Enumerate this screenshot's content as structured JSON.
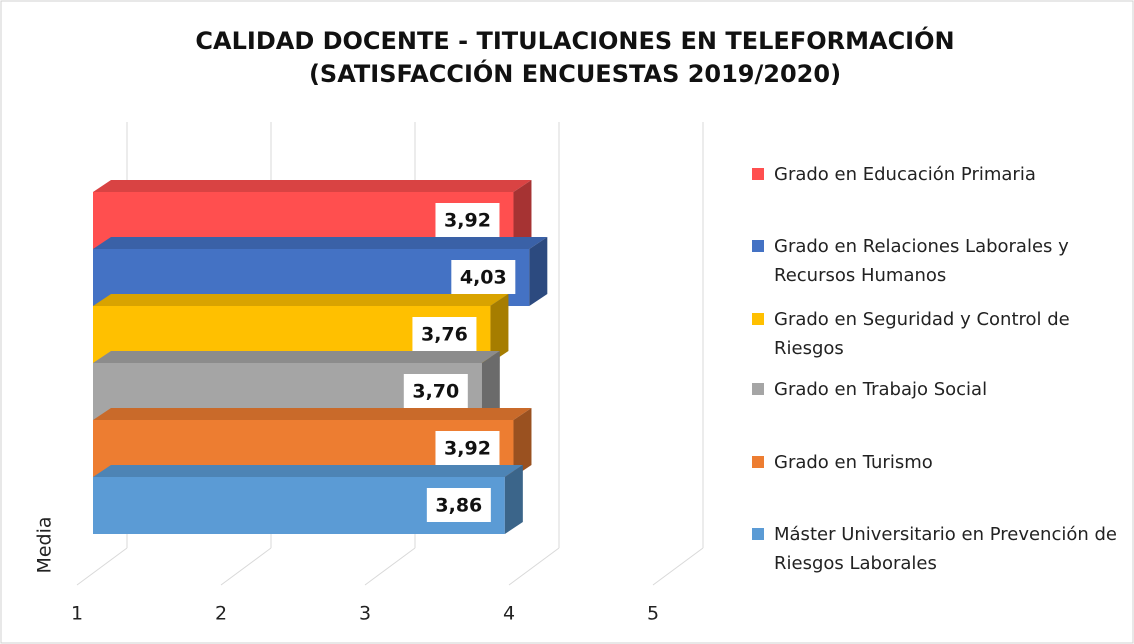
{
  "chart_data": {
    "type": "bar3d_horizontal",
    "title": [
      "CALIDAD DOCENTE - TITULACIONES EN TELEFORMACIÓN",
      "(SATISFACCIÓN ENCUESTAS 2019/2020)"
    ],
    "categories": [
      "Media"
    ],
    "series": [
      {
        "name": "Grado en Educación Primaria",
        "color": "#ff4f4f",
        "values": [
          3.92
        ],
        "value_labels": [
          "3,92"
        ]
      },
      {
        "name": "Grado en Relaciones Laborales y Recursos Humanos",
        "color": "#4472c4",
        "values": [
          4.03
        ],
        "value_labels": [
          "4,03"
        ]
      },
      {
        "name": "Grado en Seguridad y Control de Riesgos",
        "color": "#ffc000",
        "values": [
          3.76
        ],
        "value_labels": [
          "3,76"
        ]
      },
      {
        "name": "Grado en Trabajo Social",
        "color": "#a5a5a5",
        "values": [
          3.7
        ],
        "value_labels": [
          "3,70"
        ]
      },
      {
        "name": "Grado en Turismo",
        "color": "#ed7d31",
        "values": [
          3.92
        ],
        "value_labels": [
          "3,92"
        ]
      },
      {
        "name": "Máster Universitario en Prevención de Riesgos Laborales",
        "color": "#5b9bd5",
        "values": [
          3.86
        ],
        "value_labels": [
          "3,86"
        ]
      }
    ],
    "xlim": [
      1,
      5
    ],
    "xticks": [
      1,
      2,
      3,
      4,
      5
    ],
    "grid": true,
    "legend": "right"
  }
}
